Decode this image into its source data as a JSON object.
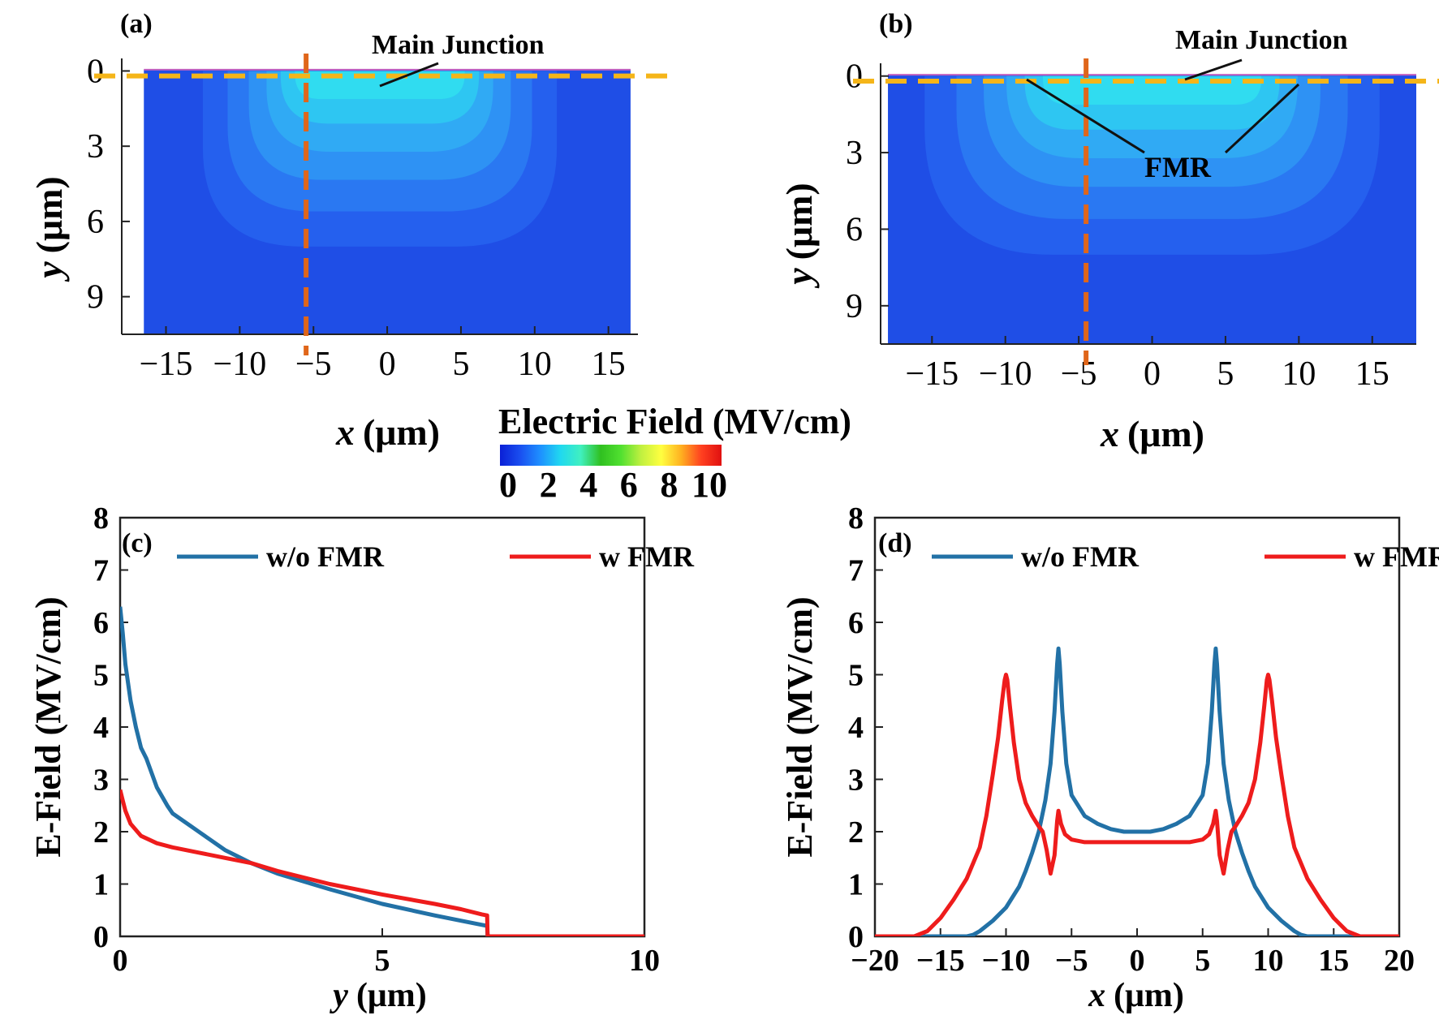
{
  "figure": {
    "colorbar": {
      "title": "Electric Field (MV/cm)",
      "ticks": [
        "0",
        "2",
        "4",
        "6",
        "8",
        "10"
      ],
      "range": [
        0,
        10
      ],
      "colors": [
        "#0a1fd6",
        "#1a4ff0",
        "#1e90ff",
        "#20d8f0",
        "#40f0c0",
        "#30c020",
        "#50e030",
        "#c0f040",
        "#ffff40",
        "#ffb020",
        "#ff4020",
        "#e01010"
      ]
    },
    "colors": {
      "substrate": "#1f4ee6",
      "orange_line": "#e0661a",
      "yellow_line": "#f5b519",
      "blue_series": "#2271a6",
      "red_series": "#ee1c1c"
    }
  },
  "chart_data": [
    {
      "panel": "(a)",
      "type": "heatmap",
      "title": "",
      "annotation": "Main Junction",
      "xlabel_var": "x",
      "xlabel_unit": "(μm)",
      "ylabel_var": "y",
      "ylabel_unit": "(μm)",
      "xlim": [
        -18,
        17
      ],
      "ylim": [
        10.5,
        -0.5
      ],
      "xticks": [
        "−15",
        "−10",
        "−5",
        "0",
        "5",
        "10",
        "15"
      ],
      "xtick_values": [
        -15,
        -10,
        -5,
        0,
        5,
        10,
        15
      ],
      "yticks": [
        "0",
        "3",
        "6",
        "9"
      ],
      "ytick_values": [
        0,
        3,
        6,
        9
      ],
      "device_x_range": [
        -16.5,
        16.5
      ],
      "junction_x_range": [
        -11,
        10
      ],
      "depletion_depth": 7,
      "vertical_cut_x": -5.5,
      "horizontal_cut_y": 0.2
    },
    {
      "panel": "(b)",
      "type": "heatmap",
      "title": "",
      "annotation_main": "Main Junction",
      "annotation_fmr": "FMR",
      "xlabel_var": "x",
      "xlabel_unit": "(μm)",
      "ylabel_var": "y",
      "ylabel_unit": "(μm)",
      "xlim": [
        -18.5,
        18
      ],
      "ylim": [
        10.5,
        -0.5
      ],
      "xticks": [
        "−15",
        "−10",
        "−5",
        "0",
        "5",
        "10",
        "15"
      ],
      "xtick_values": [
        -15,
        -10,
        -5,
        0,
        5,
        10,
        15
      ],
      "yticks": [
        "0",
        "3",
        "6",
        "9"
      ],
      "ytick_values": [
        0,
        3,
        6,
        9
      ],
      "device_x_range": [
        -18,
        18
      ],
      "junction_x_range": [
        -14,
        14
      ],
      "depletion_depth": 7,
      "vertical_cut_x": -4.5,
      "horizontal_cut_y": 0.2
    },
    {
      "panel": "(c)",
      "type": "line",
      "xlabel_var": "y",
      "xlabel_unit": "(μm)",
      "ylabel": "E-Field (MV/cm)",
      "xlim": [
        0,
        10
      ],
      "ylim": [
        0,
        8
      ],
      "xticks": [
        "0",
        "5",
        "10"
      ],
      "xtick_values": [
        0,
        5,
        10
      ],
      "yticks": [
        "0",
        "1",
        "2",
        "3",
        "4",
        "5",
        "6",
        "7",
        "8"
      ],
      "ytick_values": [
        0,
        1,
        2,
        3,
        4,
        5,
        6,
        7,
        8
      ],
      "legend_position": "top",
      "series": [
        {
          "name": "w/o FMR",
          "color": "#2271a6",
          "x": [
            0,
            0.05,
            0.1,
            0.2,
            0.3,
            0.4,
            0.5,
            0.7,
            0.9,
            1.0,
            1.5,
            2.0,
            2.5,
            3.0,
            4.0,
            5.0,
            6.0,
            6.5,
            6.9,
            7.0,
            7.01,
            8.0,
            9.0,
            10.0
          ],
          "y": [
            6.3,
            5.8,
            5.2,
            4.5,
            4.0,
            3.6,
            3.4,
            2.85,
            2.5,
            2.35,
            2.0,
            1.65,
            1.4,
            1.2,
            0.9,
            0.62,
            0.4,
            0.3,
            0.22,
            0.2,
            0.0,
            0.0,
            0.0,
            0.0
          ]
        },
        {
          "name": "w FMR",
          "color": "#ee1c1c",
          "x": [
            0,
            0.05,
            0.1,
            0.2,
            0.4,
            0.7,
            1.0,
            1.5,
            2.0,
            2.5,
            3.0,
            4.0,
            5.0,
            6.0,
            6.5,
            6.9,
            7.0,
            7.01,
            8.0,
            9.0,
            10.0
          ],
          "y": [
            2.8,
            2.6,
            2.4,
            2.15,
            1.92,
            1.78,
            1.7,
            1.6,
            1.5,
            1.4,
            1.25,
            1.0,
            0.8,
            0.62,
            0.52,
            0.42,
            0.4,
            0.0,
            0.0,
            0.0,
            0.0
          ]
        }
      ]
    },
    {
      "panel": "(d)",
      "type": "line",
      "xlabel_var": "x",
      "xlabel_unit": "(μm)",
      "ylabel": "E-Field (MV/cm)",
      "xlim": [
        -20,
        20
      ],
      "ylim": [
        0,
        8
      ],
      "xticks": [
        "−20",
        "−15",
        "−10",
        "−5",
        "0",
        "5",
        "10",
        "15",
        "20"
      ],
      "xtick_values": [
        -20,
        -15,
        -10,
        -5,
        0,
        5,
        10,
        15,
        20
      ],
      "yticks": [
        "0",
        "1",
        "2",
        "3",
        "4",
        "5",
        "6",
        "7",
        "8"
      ],
      "ytick_values": [
        0,
        1,
        2,
        3,
        4,
        5,
        6,
        7,
        8
      ],
      "legend_position": "top",
      "series": [
        {
          "name": "w/o FMR",
          "color": "#2271a6",
          "x": [
            -20,
            -13,
            -12.5,
            -12,
            -11,
            -10,
            -9,
            -8.5,
            -8,
            -7.5,
            -7,
            -6.6,
            -6.3,
            -6.1,
            -6,
            -5.9,
            -5.7,
            -5.4,
            -5,
            -4,
            -3,
            -2,
            -1,
            0,
            1,
            2,
            3,
            4,
            5,
            5.4,
            5.7,
            5.9,
            6,
            6.1,
            6.3,
            6.6,
            7,
            7.5,
            8,
            8.5,
            9,
            10,
            11,
            12,
            12.5,
            13,
            20
          ],
          "y": [
            0,
            0,
            0.03,
            0.1,
            0.3,
            0.55,
            0.95,
            1.25,
            1.6,
            2.0,
            2.6,
            3.3,
            4.3,
            5.2,
            5.5,
            5.2,
            4.3,
            3.3,
            2.7,
            2.3,
            2.15,
            2.05,
            2.0,
            2.0,
            2.0,
            2.05,
            2.15,
            2.3,
            2.7,
            3.3,
            4.3,
            5.2,
            5.5,
            5.2,
            4.3,
            3.3,
            2.6,
            2.0,
            1.6,
            1.25,
            0.95,
            0.55,
            0.3,
            0.1,
            0.03,
            0,
            0
          ]
        },
        {
          "name": "w FMR",
          "color": "#ee1c1c",
          "x": [
            -20,
            -17,
            -16,
            -15,
            -14,
            -13,
            -12,
            -11.5,
            -11,
            -10.6,
            -10.3,
            -10.1,
            -10,
            -9.9,
            -9.7,
            -9.4,
            -9,
            -8.5,
            -8,
            -7.5,
            -7.2,
            -6.9,
            -6.6,
            -6.3,
            -6.1,
            -6,
            -5.8,
            -5.5,
            -5,
            -4,
            -2,
            0,
            2,
            4,
            5,
            5.5,
            5.8,
            6,
            6.1,
            6.3,
            6.6,
            6.9,
            7.2,
            7.5,
            8,
            8.5,
            9,
            9.4,
            9.7,
            9.9,
            10,
            10.1,
            10.3,
            10.6,
            11,
            11.5,
            12,
            13,
            14,
            15,
            16,
            17,
            20
          ],
          "y": [
            0,
            0,
            0.1,
            0.35,
            0.7,
            1.1,
            1.7,
            2.3,
            3.1,
            3.8,
            4.5,
            4.9,
            5.0,
            4.9,
            4.4,
            3.7,
            3.0,
            2.55,
            2.3,
            2.1,
            2.0,
            1.65,
            1.2,
            1.55,
            2.2,
            2.4,
            2.15,
            1.95,
            1.85,
            1.8,
            1.8,
            1.8,
            1.8,
            1.8,
            1.85,
            1.95,
            2.15,
            2.4,
            2.2,
            1.55,
            1.2,
            1.65,
            2.0,
            2.1,
            2.3,
            2.55,
            3.0,
            3.7,
            4.4,
            4.9,
            5.0,
            4.9,
            4.5,
            3.8,
            3.1,
            2.3,
            1.7,
            1.1,
            0.7,
            0.35,
            0.1,
            0,
            0
          ]
        }
      ]
    }
  ]
}
